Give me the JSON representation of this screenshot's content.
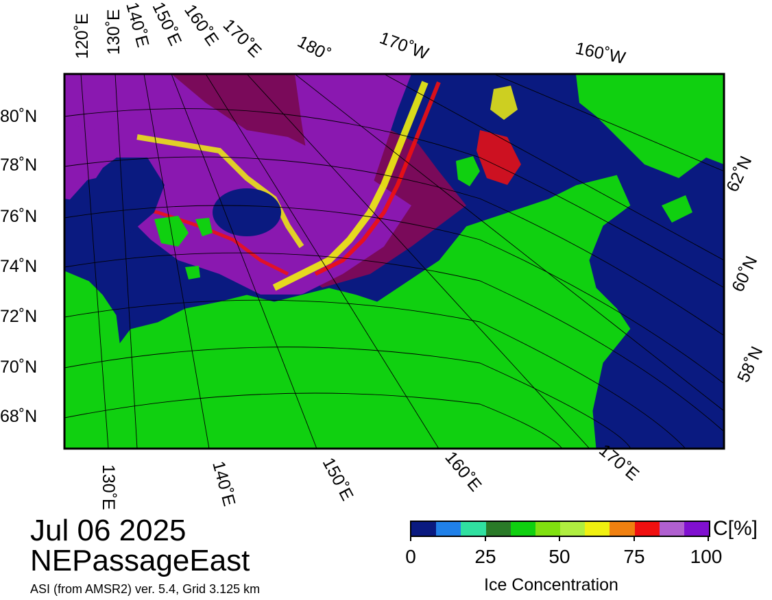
{
  "date": "Jul 06 2025",
  "region": "NEPassageEast",
  "product": "ASI (from AMSR2) ver. 5.4,  Grid 3.125 km",
  "colorbar": {
    "title": "Ice Concentration",
    "unit": "C[%]",
    "tick_labels": [
      "0",
      "25",
      "50",
      "75",
      "100"
    ],
    "colors": [
      "#0a1a80",
      "#2080e8",
      "#30e0a0",
      "#2a7a28",
      "#10d010",
      "#80e010",
      "#b0ee40",
      "#f0f010",
      "#f08010",
      "#f01010",
      "#b060d0",
      "#8010d0"
    ]
  },
  "map_colors": {
    "water": "#0a1a80",
    "land": "#10d010",
    "pack_ice": "#7a0a5a",
    "dense_ice": "#8a18b0",
    "mid_ice": "#f0f010",
    "edge_ice": "#f01010"
  },
  "graticule": {
    "top_labels": [
      "120˚E",
      "130˚E",
      "140˚E",
      "150˚E",
      "160˚E",
      "170˚E",
      "180˚",
      "170˚W",
      "160˚W"
    ],
    "left_labels": [
      "80˚N",
      "78˚N",
      "76˚N",
      "74˚N",
      "72˚N",
      "70˚N",
      "68˚N"
    ],
    "right_labels": [
      "62˚N",
      "60˚N",
      "58˚N"
    ],
    "bottom_labels": [
      "130˚E",
      "140˚E",
      "150˚E",
      "160˚E",
      "170˚E"
    ]
  }
}
